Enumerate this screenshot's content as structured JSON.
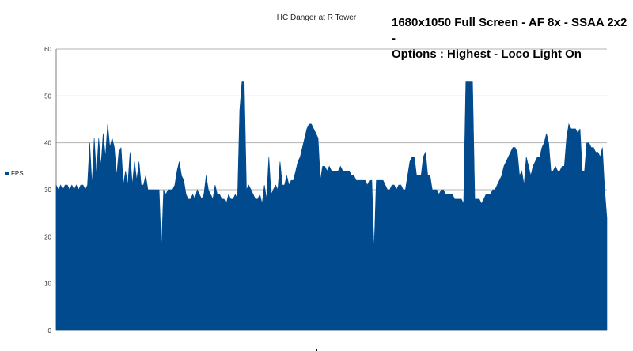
{
  "annotation": {
    "line1": "1680x1050 Full Screen - AF 8x - SSAA 2x2 -",
    "line2": "Options : Highest - Loco Light On"
  },
  "colors": {
    "series": "#004a8d",
    "grid": "#b3b3b3",
    "axis": "#7f7f7f"
  },
  "chart_data": {
    "type": "area",
    "title": "HC Danger at R Tower",
    "xlabel": "",
    "ylabel": "",
    "ylim": [
      0,
      60
    ],
    "yticks": [
      0,
      10,
      20,
      30,
      40,
      50,
      60
    ],
    "grid": true,
    "legend_position": "left",
    "series": [
      {
        "name": "FPS",
        "values": [
          31,
          30,
          31,
          30,
          31,
          31,
          30,
          31,
          30,
          31,
          30,
          31,
          31,
          30,
          31,
          40,
          31,
          41,
          33,
          41,
          35,
          42,
          37,
          44,
          39,
          41,
          39,
          33,
          38,
          39,
          31,
          34,
          31,
          38,
          31,
          36,
          32,
          36,
          31,
          31,
          33,
          30,
          30,
          30,
          30,
          30,
          30,
          17,
          30,
          29,
          30,
          30,
          30,
          31,
          34,
          36,
          33,
          32,
          29,
          28,
          28,
          29,
          28,
          30,
          29,
          28,
          29,
          33,
          30,
          29,
          28,
          31,
          29,
          29,
          28,
          28,
          27,
          29,
          28,
          28,
          29,
          28,
          47,
          53,
          53,
          30,
          31,
          30,
          29,
          28,
          28,
          29,
          27,
          31,
          28,
          37,
          29,
          30,
          31,
          30,
          36,
          31,
          31,
          33,
          31,
          32,
          32,
          34,
          36,
          37,
          39,
          41,
          43,
          44,
          44,
          43,
          42,
          41,
          32,
          35,
          35,
          34,
          35,
          34,
          34,
          34,
          34,
          35,
          34,
          34,
          34,
          34,
          33,
          33,
          32,
          32,
          32,
          32,
          32,
          31,
          32,
          32,
          17,
          32,
          32,
          32,
          32,
          31,
          30,
          30,
          31,
          31,
          30,
          31,
          31,
          30,
          30,
          33,
          36,
          37,
          37,
          33,
          33,
          33,
          37,
          38,
          33,
          33,
          30,
          30,
          30,
          29,
          30,
          30,
          29,
          29,
          29,
          29,
          28,
          28,
          28,
          28,
          27,
          53,
          53,
          53,
          53,
          28,
          28,
          28,
          27,
          28,
          29,
          29,
          29,
          30,
          30,
          31,
          32,
          33,
          35,
          36,
          37,
          38,
          39,
          39,
          38,
          33,
          34,
          31,
          37,
          35,
          33,
          35,
          36,
          37,
          37,
          39,
          40,
          42,
          40,
          34,
          34,
          35,
          34,
          34,
          35,
          35,
          41,
          44,
          43,
          43,
          43,
          42,
          43,
          34,
          34,
          40,
          40,
          39,
          39,
          38,
          38,
          37,
          39,
          30,
          24
        ]
      }
    ]
  }
}
